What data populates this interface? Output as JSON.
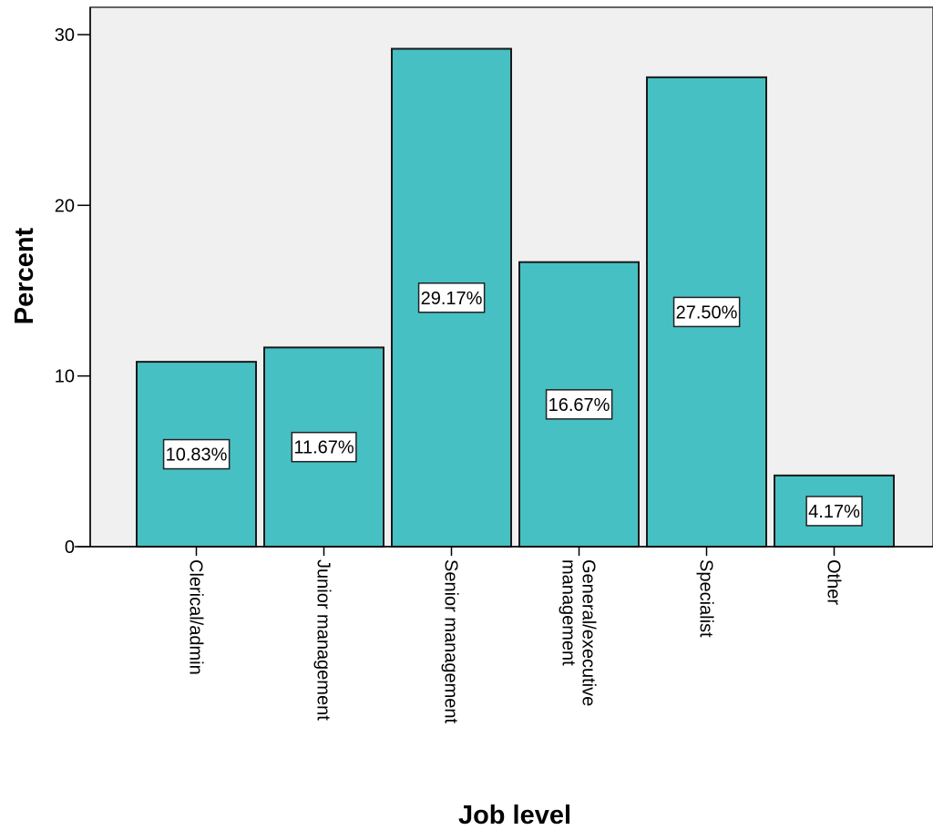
{
  "chart_data": {
    "type": "bar",
    "title": "",
    "xlabel": "Job level",
    "ylabel": "Percent",
    "categories": [
      [
        "Clerical/admin"
      ],
      [
        "Junior management"
      ],
      [
        "Senior management"
      ],
      [
        "General/executive",
        "management"
      ],
      [
        "Specialist"
      ],
      [
        "Other"
      ]
    ],
    "values": [
      10.83,
      11.67,
      29.17,
      16.67,
      27.5,
      4.17
    ],
    "data_labels": [
      "10.83%",
      "11.67%",
      "29.17%",
      "16.67%",
      "27.50%",
      "4.17%"
    ],
    "ylim": [
      0,
      30
    ],
    "yticks": [
      {
        "value": 0,
        "label": "0"
      },
      {
        "value": 10,
        "label": "10"
      },
      {
        "value": 20,
        "label": "20"
      },
      {
        "value": 30,
        "label": "30"
      }
    ],
    "grid": false,
    "colors": {
      "bar": "#47c0c4",
      "plot_background": "#f0f0f0",
      "bar_outline": "#1a1a1a",
      "axis": "#000000",
      "label_box": "#ffffff"
    }
  }
}
